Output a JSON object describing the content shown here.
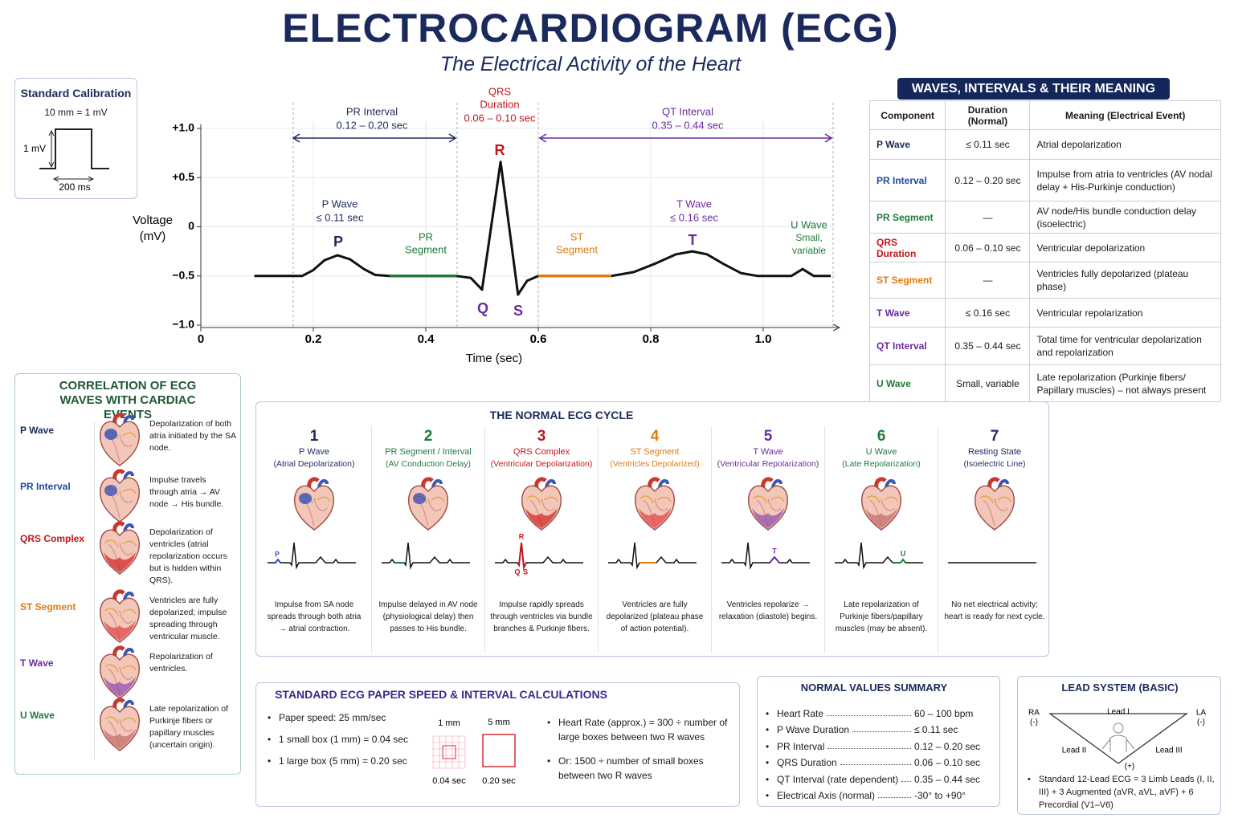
{
  "header": {
    "title": "ELECTROCARDIOGRAM (ECG)",
    "subtitle": "The Electrical Activity of the Heart"
  },
  "calibration": {
    "title": "Standard Calibration",
    "scale": "10 mm = 1 mV",
    "y_label": "1 mV",
    "x_label": "200 ms"
  },
  "ecg_plot": {
    "y_label_line1": "Voltage",
    "y_label_line2": "(mV)",
    "x_label": "Time (sec)",
    "xlim": [
      0,
      1.13
    ],
    "ylim": [
      -1,
      1
    ],
    "yticks": [
      {
        "value": 1,
        "label": "+1.0"
      },
      {
        "value": 0.5,
        "label": "+0.5"
      },
      0,
      {
        "value": -0.5,
        "label": "−0.5"
      },
      {
        "value": -1,
        "label": "−1.0"
      }
    ],
    "xticks": [
      0,
      0.2,
      0.4,
      0.6,
      0.8,
      {
        "value": 1,
        "label": "1.0"
      }
    ],
    "grid": true,
    "trace": {
      "x": [
        0.095,
        0.18,
        0.2,
        0.22,
        0.243,
        0.265,
        0.29,
        0.31,
        0.335,
        0.455,
        0.48,
        0.5,
        0.533,
        0.564,
        0.58,
        0.6,
        0.73,
        0.77,
        0.81,
        0.845,
        0.874,
        0.9,
        0.93,
        0.96,
        0.99,
        1.05,
        1.07,
        1.09,
        1.12
      ],
      "y": [
        -0.5,
        -0.5,
        -0.44,
        -0.34,
        -0.29,
        -0.33,
        -0.43,
        -0.49,
        -0.5,
        -0.5,
        -0.52,
        -0.64,
        0.66,
        -0.69,
        -0.55,
        -0.5,
        -0.5,
        -0.46,
        -0.37,
        -0.28,
        -0.25,
        -0.28,
        -0.38,
        -0.47,
        -0.5,
        -0.5,
        -0.43,
        -0.5,
        -0.5
      ]
    },
    "annotations": {
      "pr_interval": {
        "name": "PR Interval",
        "range": "0.12 – 0.20 sec"
      },
      "qrs": {
        "line1": "QRS",
        "line2": "Duration",
        "range": "0.06 – 0.10 sec"
      },
      "qt_interval": {
        "name": "QT Interval",
        "range": "0.35 – 0.44 sec"
      },
      "r": "R",
      "q": "Q",
      "s": "S",
      "p_wave": {
        "name": "P Wave",
        "duration": "≤ 0.11 sec",
        "letter": "P"
      },
      "pr_segment": {
        "line1": "PR",
        "line2": "Segment"
      },
      "st_segment": {
        "line1": "ST",
        "line2": "Segment"
      },
      "t_wave": {
        "name": "T Wave",
        "duration": "≤ 0.16 sec",
        "letter": "T"
      },
      "u_wave": {
        "name": "U Wave",
        "line1": "Small,",
        "line2": "variable"
      }
    }
  },
  "waves_table": {
    "title": "WAVES, INTERVALS & THEIR MEANING",
    "header": [
      "Component",
      "Duration (Normal)",
      "Meaning (Electrical Event)"
    ],
    "rows": [
      [
        "P Wave",
        "≤ 0.11 sec",
        "Atrial depolarization"
      ],
      [
        "PR Interval",
        "0.12 – 0.20 sec",
        "Impulse from atria to ventricles (AV nodal delay + His-Purkinje conduction)"
      ],
      [
        "PR Segment",
        "—",
        "AV node/His bundle conduction delay (isoelectric)"
      ],
      [
        "QRS Duration",
        "0.06 – 0.10 sec",
        "Ventricular depolarization"
      ],
      [
        "ST Segment",
        "—",
        "Ventricles fully depolarized (plateau phase)"
      ],
      [
        "T Wave",
        "≤ 0.16 sec",
        "Ventricular repolarization"
      ],
      [
        "QT Interval",
        "0.35 – 0.44 sec",
        "Total time for ventricular depolarization and repolarization"
      ],
      [
        "U Wave",
        "Small, variable",
        "Late repolarization (Purkinje fibers/ Papillary muscles) – not always present"
      ]
    ]
  },
  "correlation": {
    "title": "CORRELATION OF ECG WAVES WITH CARDIAC EVENTS",
    "items": [
      {
        "label": "P Wave",
        "text": "Depolarization of both atria initiated by the SA node."
      },
      {
        "label": "PR Interval",
        "text": "Impulse travels through atria → AV node → His bundle."
      },
      {
        "label": "QRS Complex",
        "text": "Depolarization of ventricles (atrial repolarization occurs but is hidden within QRS)."
      },
      {
        "label": "ST Segment",
        "text": "Ventricles are fully depolarized; impulse spreading through ventricular muscle."
      },
      {
        "label": "T Wave",
        "text": "Repolarization of ventricles."
      },
      {
        "label": "U Wave",
        "text": "Late repolarization of Purkinje fibers or papillary muscles (uncertain origin)."
      }
    ]
  },
  "cycle": {
    "title": "THE NORMAL ECG CYCLE",
    "steps": [
      {
        "num": "1",
        "name": "P Wave",
        "sub": "(Atrial Depolarization)",
        "desc": "Impulse from SA node spreads through both atria → atrial contraction.",
        "labels": [
          "P"
        ]
      },
      {
        "num": "2",
        "name": "PR Segment / Interval",
        "sub": "(AV Conduction Delay)",
        "desc": "Impulse delayed in AV node (physiological delay) then passes to His bundle."
      },
      {
        "num": "3",
        "name": "QRS Complex",
        "sub": "(Ventricular Depolarization)",
        "desc": "Impulse rapidly spreads through ventricles via bundle branches & Purkinje fibers.",
        "labels": [
          "R",
          "Q",
          "S"
        ]
      },
      {
        "num": "4",
        "name": "ST Segment",
        "sub": "(Ventricles Depolarized)",
        "desc": "Ventricles are fully depolarized (plateau phase of action potential)."
      },
      {
        "num": "5",
        "name": "T Wave",
        "sub": "(Ventricular Repolarization)",
        "desc": "Ventricles repolarize → relaxation (diastole) begins.",
        "labels": [
          "T"
        ]
      },
      {
        "num": "6",
        "name": "U Wave",
        "sub": "(Late Repolarization)",
        "desc": "Late repolarization of Purkinje fibers/papillary muscles (may be absent).",
        "labels": [
          "U"
        ]
      },
      {
        "num": "7",
        "name": "Resting State",
        "sub": "(Isoelectric Line)",
        "desc": "No net electrical activity; heart is ready for next cycle."
      }
    ]
  },
  "paper": {
    "title": "STANDARD ECG PAPER SPEED & INTERVAL CALCULATIONS",
    "bullets": [
      "Paper speed: 25 mm/sec",
      "1 small box (1 mm) = 0.04 sec",
      "1 large box (5 mm) = 0.20 sec"
    ],
    "small_top": "1 mm",
    "large_top": "5 mm",
    "small_bottom": "0.04 sec",
    "large_bottom": "0.20 sec",
    "hr_bullets": [
      "Heart Rate (approx.) = 300 ÷ number of large boxes between two R waves",
      "Or: 1500 ÷ number of small boxes between two R waves"
    ]
  },
  "normal_values": {
    "title": "NORMAL VALUES SUMMARY",
    "rows": [
      [
        "Heart Rate",
        "60 – 100 bpm"
      ],
      [
        "P Wave Duration",
        "≤ 0.11 sec"
      ],
      [
        "PR Interval",
        "0.12 – 0.20 sec"
      ],
      [
        "QRS Duration",
        "0.06 – 0.10 sec"
      ],
      [
        "QT Interval (rate dependent)",
        "0.35 – 0.44 sec"
      ],
      [
        "Electrical Axis (normal)",
        "-30° to +90°"
      ]
    ]
  },
  "lead_system": {
    "title": "LEAD SYSTEM (BASIC)",
    "ra": "RA",
    "ra_sign": "(-)",
    "la": "LA",
    "la_sign": "(-)",
    "lead_i": "Lead I",
    "lead_ii": "Lead II",
    "lead_iii": "Lead III",
    "ll_sign": "(+)",
    "note": "Standard 12-Lead ECG = 3 Limb Leads (I, II, III) + 3 Augmented (aVR, aVL, aVF) + 6 Precordial (V1–V6)"
  }
}
